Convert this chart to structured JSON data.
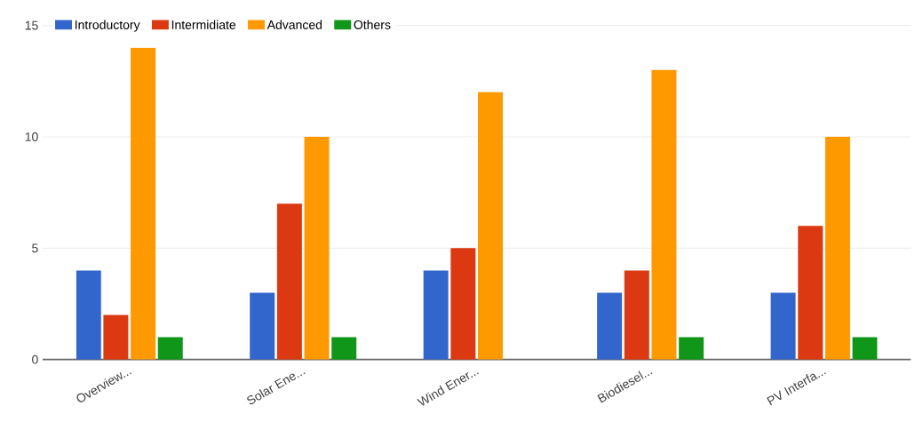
{
  "chart_data": {
    "type": "bar",
    "categories": [
      "Overview...",
      "Solar Ene...",
      "Wind Ener...",
      "Biodiesel...",
      "PV Interfa..."
    ],
    "series": [
      {
        "name": "Introductory",
        "color": "#3366cc",
        "values": [
          4,
          3,
          4,
          3,
          3
        ]
      },
      {
        "name": "Intermidiate",
        "color": "#dc3912",
        "values": [
          2,
          7,
          5,
          4,
          6
        ]
      },
      {
        "name": "Advanced",
        "color": "#ff9900",
        "values": [
          14,
          10,
          12,
          13,
          10
        ]
      },
      {
        "name": "Others",
        "color": "#109618",
        "values": [
          1,
          1,
          null,
          1,
          1
        ]
      }
    ],
    "ylim": [
      0,
      15
    ],
    "yticks": [
      0,
      5,
      10,
      15
    ],
    "grid": "y",
    "legend": "top"
  }
}
